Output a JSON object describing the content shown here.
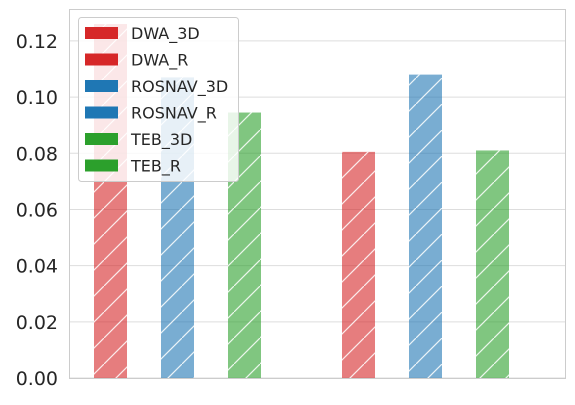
{
  "chart_data": {
    "type": "bar",
    "title": "",
    "xlabel": "",
    "ylabel": "",
    "ylim": [
      0,
      0.131
    ],
    "yticks": [
      "0.00",
      "0.02",
      "0.04",
      "0.06",
      "0.08",
      "0.10",
      "0.12"
    ],
    "ytick_values": [
      0,
      0.02,
      0.04,
      0.06,
      0.08,
      0.1,
      0.12
    ],
    "grid": true,
    "legend_position": "top-left",
    "groups": 2,
    "series": [
      {
        "name": "DWA_3D",
        "color": "#d62728",
        "hatch": "diagonal",
        "values": [
          0.126,
          0.0805
        ]
      },
      {
        "name": "DWA_R",
        "color": "#d62728",
        "hatch": "none",
        "values": [
          0,
          0
        ]
      },
      {
        "name": "ROSNAV_3D",
        "color": "#1f77b4",
        "hatch": "diagonal",
        "values": [
          0.107,
          0.108
        ]
      },
      {
        "name": "ROSNAV_R",
        "color": "#1f77b4",
        "hatch": "none",
        "values": [
          0,
          0
        ]
      },
      {
        "name": "TEB_3D",
        "color": "#2ca02c",
        "hatch": "diagonal",
        "values": [
          0.0945,
          0.081
        ]
      },
      {
        "name": "TEB_R",
        "color": "#2ca02c",
        "hatch": "none",
        "values": [
          0,
          0
        ]
      }
    ]
  }
}
